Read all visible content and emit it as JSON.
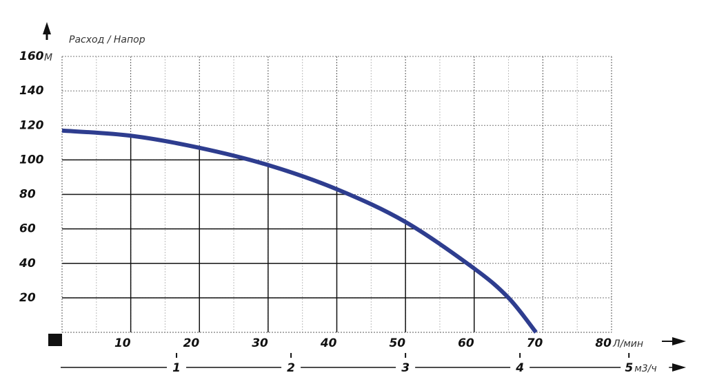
{
  "chart_data": {
    "type": "line",
    "title": "Расход / Напор",
    "y_unit": "М",
    "x_unit": "Л/мин",
    "x2_unit": "м3/ч",
    "x": [
      0,
      10,
      20,
      30,
      40,
      50,
      60,
      65,
      69
    ],
    "values": [
      117,
      114,
      107,
      97,
      83,
      64,
      37,
      20,
      0
    ],
    "color": "#2e3d8f",
    "xlim": [
      0,
      80
    ],
    "xticks": [
      10,
      20,
      30,
      40,
      50,
      60,
      70,
      80
    ],
    "ylim": [
      0,
      160
    ],
    "yticks": [
      20,
      40,
      60,
      80,
      100,
      120,
      140,
      160
    ],
    "x2lim": [
      0,
      4.8
    ],
    "x2ticks": [
      1,
      2,
      3,
      4,
      5
    ],
    "grid": true
  }
}
